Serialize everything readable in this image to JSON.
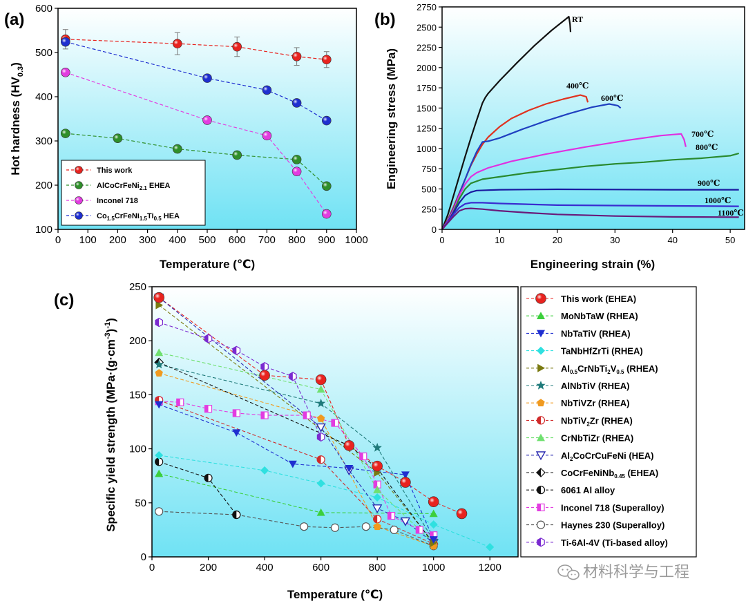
{
  "watermark": {
    "text": "材料科学与工程"
  },
  "chart_data": [
    {
      "panel": "(a)",
      "type": "line",
      "xlabel": "Temperature (℃)",
      "ylabel": "Hot hardness (HV0.3)",
      "ylabel_parts": {
        "main": "Hot hardness (HV",
        "sub": "0.3",
        "tail": ")"
      },
      "xlim": [
        0,
        1000
      ],
      "ylim": [
        100,
        600
      ],
      "xticks": [
        0,
        100,
        200,
        300,
        400,
        500,
        600,
        700,
        800,
        900,
        1000
      ],
      "yticks": [
        100,
        200,
        300,
        400,
        500,
        600
      ],
      "legend_position": "lower-left",
      "series": [
        {
          "name": "This work",
          "name_parts": [
            {
              "t": "This work"
            }
          ],
          "color": "#e8231f",
          "x": [
            25,
            400,
            600,
            800,
            900
          ],
          "y": [
            530,
            520,
            513,
            491,
            484
          ],
          "err": [
            22,
            25,
            22,
            20,
            18
          ]
        },
        {
          "name": "AlCoCrFeNi2.1 EHEA",
          "name_parts": [
            {
              "t": "AlCoCrFeNi"
            },
            {
              "t": "2.1",
              "sub": true
            },
            {
              "t": " EHEA"
            }
          ],
          "color": "#2f8f2a",
          "x": [
            25,
            200,
            400,
            600,
            800,
            900
          ],
          "y": [
            317,
            306,
            282,
            268,
            258,
            198
          ]
        },
        {
          "name": "Inconel 718",
          "name_parts": [
            {
              "t": "Inconel 718"
            }
          ],
          "color": "#e23ce0",
          "x": [
            25,
            500,
            700,
            800,
            900
          ],
          "y": [
            455,
            347,
            312,
            231,
            135
          ]
        },
        {
          "name": "Co1.5CrFeNi1.5Ti0.5 HEA",
          "name_parts": [
            {
              "t": "Co"
            },
            {
              "t": "1.5",
              "sub": true
            },
            {
              "t": "CrFeNi"
            },
            {
              "t": "1.5",
              "sub": true
            },
            {
              "t": "Ti"
            },
            {
              "t": "0.5",
              "sub": true
            },
            {
              "t": " HEA"
            }
          ],
          "color": "#1f2fd0",
          "x": [
            25,
            500,
            700,
            800,
            900
          ],
          "y": [
            524,
            442,
            415,
            386,
            346
          ]
        }
      ]
    },
    {
      "panel": "(b)",
      "type": "line",
      "xlabel": "Engineering strain (%)",
      "ylabel": "Engineering stress (MPa)",
      "xlim": [
        0,
        52.5
      ],
      "ylim": [
        0,
        2750
      ],
      "xticks": [
        0,
        10,
        20,
        30,
        40,
        50
      ],
      "yticks": [
        0,
        250,
        500,
        750,
        1000,
        1250,
        1500,
        1750,
        2000,
        2250,
        2500,
        2750
      ],
      "series": [
        {
          "name": "RT",
          "color": "#111111",
          "x": [
            0,
            1,
            2,
            3,
            4,
            5,
            6,
            7,
            7.5,
            8,
            10,
            13,
            16,
            19,
            22,
            22.2,
            22.3
          ],
          "y": [
            0,
            180,
            420,
            660,
            900,
            1130,
            1350,
            1560,
            1630,
            1680,
            1840,
            2060,
            2270,
            2460,
            2630,
            2540,
            2440
          ]
        },
        {
          "name": "400℃",
          "color": "#e0321f",
          "x": [
            0,
            1,
            2,
            3,
            4,
            5,
            6,
            7,
            8,
            10,
            12,
            15,
            18,
            21,
            24,
            25,
            25.3
          ],
          "y": [
            0,
            120,
            280,
            450,
            620,
            790,
            930,
            1050,
            1140,
            1270,
            1370,
            1470,
            1550,
            1610,
            1660,
            1640,
            1570
          ]
        },
        {
          "name": "600℃",
          "color": "#2040c0",
          "x": [
            0,
            1,
            2,
            3,
            4,
            5,
            6,
            7,
            8,
            10,
            14,
            18,
            22,
            26,
            29,
            30.5,
            31
          ],
          "y": [
            0,
            110,
            260,
            440,
            620,
            800,
            960,
            1080,
            1090,
            1130,
            1240,
            1340,
            1430,
            1510,
            1550,
            1530,
            1500
          ]
        },
        {
          "name": "700℃",
          "color": "#e030e0",
          "x": [
            0,
            1,
            2,
            3,
            4,
            5,
            6,
            8,
            12,
            18,
            25,
            32,
            38,
            41.5,
            42,
            42.3
          ],
          "y": [
            0,
            100,
            240,
            420,
            560,
            650,
            700,
            760,
            840,
            930,
            1020,
            1100,
            1160,
            1180,
            1110,
            1020
          ]
        },
        {
          "name": "800℃",
          "color": "#2a8a30",
          "x": [
            0,
            1,
            2,
            3,
            4,
            5,
            7,
            10,
            15,
            20,
            25,
            30,
            35,
            40,
            45,
            50,
            51.5
          ],
          "y": [
            0,
            90,
            220,
            380,
            500,
            570,
            620,
            650,
            700,
            740,
            780,
            810,
            830,
            860,
            880,
            910,
            940
          ]
        },
        {
          "name": "900℃",
          "color": "#1a1aa0",
          "x": [
            0,
            1,
            2,
            3,
            4,
            5,
            6,
            8,
            10,
            20,
            30,
            40,
            51.5
          ],
          "y": [
            0,
            90,
            210,
            330,
            420,
            460,
            480,
            485,
            490,
            495,
            493,
            490,
            490
          ]
        },
        {
          "name": "1000℃",
          "color": "#3a2cd0",
          "x": [
            0,
            1,
            2,
            3,
            4,
            5,
            7,
            10,
            20,
            30,
            40,
            51.5
          ],
          "y": [
            0,
            90,
            190,
            270,
            315,
            330,
            330,
            320,
            300,
            295,
            290,
            285
          ]
        },
        {
          "name": "1100℃",
          "color": "#6a1a7a",
          "x": [
            0,
            1,
            2,
            3,
            4,
            5,
            7,
            10,
            15,
            20,
            30,
            40,
            51.5
          ],
          "y": [
            0,
            80,
            160,
            230,
            255,
            260,
            250,
            230,
            205,
            185,
            165,
            155,
            150
          ]
        }
      ]
    },
    {
      "panel": "(c)",
      "type": "line",
      "xlabel": "Temperature (℃)",
      "ylabel": "Specific yield strength (MPa·(g·cm-3)-1)",
      "xlim": [
        0,
        1300
      ],
      "ylim": [
        0,
        250
      ],
      "xticks": [
        0,
        200,
        400,
        600,
        800,
        1000,
        1200
      ],
      "yticks": [
        0,
        50,
        100,
        150,
        200,
        250
      ],
      "legend_position": "right-outside",
      "series": [
        {
          "name": "This work (EHEA)",
          "name_parts": [
            {
              "t": "This work (EHEA)"
            }
          ],
          "color": "#e8231f",
          "marker": "circle-big",
          "x": [
            25,
            400,
            600,
            700,
            800,
            900,
            1000,
            1100
          ],
          "y": [
            240,
            168,
            164,
            103,
            84,
            69,
            51,
            40
          ]
        },
        {
          "name": "MoNbTaW (RHEA)",
          "name_parts": [
            {
              "t": "MoNbTaW (RHEA)"
            }
          ],
          "color": "#3ccf3c",
          "marker": "triangle-up",
          "x": [
            25,
            600,
            1000
          ],
          "y": [
            77,
            41,
            40
          ]
        },
        {
          "name": "NbTaTiV (RHEA)",
          "name_parts": [
            {
              "t": "NbTaTiV (RHEA)"
            }
          ],
          "color": "#1f2fd0",
          "marker": "triangle-down",
          "x": [
            25,
            300,
            500,
            700,
            900,
            1000
          ],
          "y": [
            141,
            115,
            86,
            82,
            76,
            16
          ]
        },
        {
          "name": "TaNbHfZrTi (RHEA)",
          "name_parts": [
            {
              "t": "TaNbHfZrTi (RHEA)"
            }
          ],
          "color": "#2fe0e0",
          "marker": "diamond",
          "x": [
            25,
            400,
            600,
            800,
            1000,
            1200
          ],
          "y": [
            94,
            80,
            68,
            55,
            30,
            9
          ]
        },
        {
          "name": "Al0.5CrNbTi2V0.5 (RHEA)",
          "name_parts": [
            {
              "t": "Al"
            },
            {
              "t": "0.5",
              "sub": true
            },
            {
              "t": "CrNbTi"
            },
            {
              "t": "2",
              "sub": true
            },
            {
              "t": "V"
            },
            {
              "t": "0.5",
              "sub": true
            },
            {
              "t": " (RHEA)"
            }
          ],
          "color": "#7a7a10",
          "marker": "triangle-right",
          "x": [
            25,
            800,
            1000
          ],
          "y": [
            233,
            78,
            13
          ]
        },
        {
          "name": "AlNbTiV (RHEA)",
          "name_parts": [
            {
              "t": "AlNbTiV (RHEA)"
            }
          ],
          "color": "#1f7a7a",
          "marker": "star",
          "x": [
            25,
            600,
            800,
            1000
          ],
          "y": [
            178,
            142,
            101,
            15
          ]
        },
        {
          "name": "NbTiVZr (RHEA)",
          "name_parts": [
            {
              "t": "NbTiVZr (RHEA)"
            }
          ],
          "color": "#f09a20",
          "marker": "pentagon",
          "x": [
            25,
            600,
            800,
            1000
          ],
          "y": [
            170,
            128,
            28,
            10
          ]
        },
        {
          "name": "NbTiV2Zr (RHEA)",
          "name_parts": [
            {
              "t": "NbTiV"
            },
            {
              "t": "2",
              "sub": true
            },
            {
              "t": "Zr (RHEA)"
            }
          ],
          "color": "#d02a2a",
          "marker": "circle-half",
          "x": [
            25,
            600,
            800,
            1000
          ],
          "y": [
            145,
            90,
            35,
            12
          ]
        },
        {
          "name": "CrNbTiZr (RHEA)",
          "name_parts": [
            {
              "t": "CrNbTiZr (RHEA)"
            }
          ],
          "color": "#70e070",
          "marker": "triangle-up",
          "x": [
            25,
            600,
            800,
            1000
          ],
          "y": [
            189,
            155,
            62,
            13
          ]
        },
        {
          "name": "Al2CoCrCuFeNi (HEA)",
          "name_parts": [
            {
              "t": "Al"
            },
            {
              "t": "2",
              "sub": true
            },
            {
              "t": "CoCrCuFeNi (HEA)"
            }
          ],
          "color": "#2a2ab0",
          "marker": "triangle-down-open",
          "x": [
            25,
            600,
            700,
            800,
            900,
            1000
          ],
          "y": [
            240,
            120,
            80,
            45,
            33,
            13
          ]
        },
        {
          "name": "CoCrFeNiNb0.45 (EHEA)",
          "name_parts": [
            {
              "t": "CoCrFeNiNb"
            },
            {
              "t": "0.45",
              "sub": true
            },
            {
              "t": " (EHEA)"
            }
          ],
          "color": "#111111",
          "marker": "diamond-half",
          "x": [
            25,
            700,
            800,
            1000
          ],
          "y": [
            180,
            103,
            82,
            12
          ]
        },
        {
          "name": "6061 Al alloy",
          "name_parts": [
            {
              "t": "6061 Al alloy"
            }
          ],
          "color": "#111111",
          "marker": "circle-half",
          "x": [
            25,
            200,
            300
          ],
          "y": [
            88,
            73,
            39
          ]
        },
        {
          "name": "Inconel 718 (Superalloy)",
          "name_parts": [
            {
              "t": "Inconel 718 (Superalloy)"
            }
          ],
          "color": "#e23ce0",
          "marker": "square-half",
          "x": [
            25,
            100,
            200,
            300,
            400,
            550,
            650,
            750,
            800,
            850,
            950,
            1000
          ],
          "y": [
            144,
            143,
            137,
            133,
            131,
            131,
            124,
            93,
            67,
            38,
            25,
            20
          ]
        },
        {
          "name": "Haynes 230 (Superalloy)",
          "name_parts": [
            {
              "t": "Haynes 230 (Superalloy)"
            }
          ],
          "color": "#555555",
          "marker": "circle-open",
          "x": [
            25,
            300,
            540,
            650,
            760,
            860,
            1000
          ],
          "y": [
            42,
            39,
            28,
            27,
            28,
            25,
            10
          ]
        },
        {
          "name": "Ti-6Al-4V (Ti-based alloy)",
          "name_parts": [
            {
              "t": "Ti-6Al-4V (Ti-based alloy)"
            }
          ],
          "color": "#7a2ad0",
          "marker": "hexagon-half",
          "x": [
            25,
            200,
            300,
            400,
            500,
            600
          ],
          "y": [
            217,
            202,
            191,
            176,
            167,
            111
          ]
        }
      ]
    }
  ]
}
